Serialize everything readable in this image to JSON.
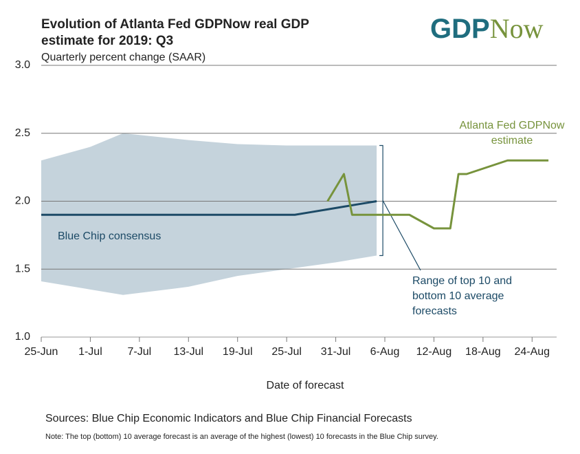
{
  "chart_data": {
    "type": "line",
    "title": "Evolution of Atlanta Fed GDPNow real GDP estimate for 2019: Q3",
    "subtitle": "Quarterly percent change (SAAR)",
    "logo": {
      "first": "GDP",
      "second": "Now"
    },
    "xlabel": "Date of forecast",
    "xlim": [
      "25-Jun",
      "27-Aug"
    ],
    "xticks": [
      "25-Jun",
      "1-Jul",
      "7-Jul",
      "13-Jul",
      "19-Jul",
      "25-Jul",
      "31-Jul",
      "6-Aug",
      "12-Aug",
      "18-Aug",
      "24-Aug"
    ],
    "ylim": [
      1.0,
      3.0
    ],
    "yticks": [
      {
        "value": 1.0,
        "label": "1.0"
      },
      {
        "value": 1.5,
        "label": "1.5"
      },
      {
        "value": 2.0,
        "label": "2.0"
      },
      {
        "value": 2.5,
        "label": "2.5"
      },
      {
        "value": 3.0,
        "label": "3.0"
      }
    ],
    "grid": true,
    "range_band": {
      "label": "Range of top 10 and bottom 10 average forecasts",
      "color": "#c5d3dc",
      "x": [
        "25-Jun",
        "1-Jul",
        "5-Jul",
        "13-Jul",
        "19-Jul",
        "25-Jul",
        "31-Jul",
        "5-Aug"
      ],
      "high": [
        2.3,
        2.4,
        2.5,
        2.45,
        2.42,
        2.41,
        2.41,
        2.41
      ],
      "low": [
        1.41,
        1.35,
        1.31,
        1.37,
        1.45,
        1.5,
        1.55,
        1.6
      ]
    },
    "series": [
      {
        "name": "Blue Chip consensus",
        "color": "#1c4a66",
        "x": [
          "25-Jun",
          "26-Jul",
          "28-Jul",
          "30-Jul",
          "1-Aug",
          "3-Aug",
          "5-Aug"
        ],
        "values": [
          1.9,
          1.9,
          1.92,
          1.94,
          1.96,
          1.98,
          2.0
        ]
      },
      {
        "name": "Atlanta Fed GDPNow estimate",
        "color": "#77933c",
        "x": [
          "30-Jul",
          "1-Aug",
          "2-Aug",
          "9-Aug",
          "12-Aug",
          "14-Aug",
          "15-Aug",
          "16-Aug",
          "21-Aug",
          "26-Aug"
        ],
        "values": [
          2.0,
          2.2,
          1.9,
          1.9,
          1.8,
          1.8,
          2.2,
          2.2,
          2.3,
          2.3
        ]
      }
    ],
    "source": "Sources: Blue Chip Economic Indicators and Blue Chip Financial Forecasts",
    "note": "Note: The top (bottom) 10 average forecast is an average of the highest (lowest) 10 forecasts in the Blue Chip survey."
  }
}
